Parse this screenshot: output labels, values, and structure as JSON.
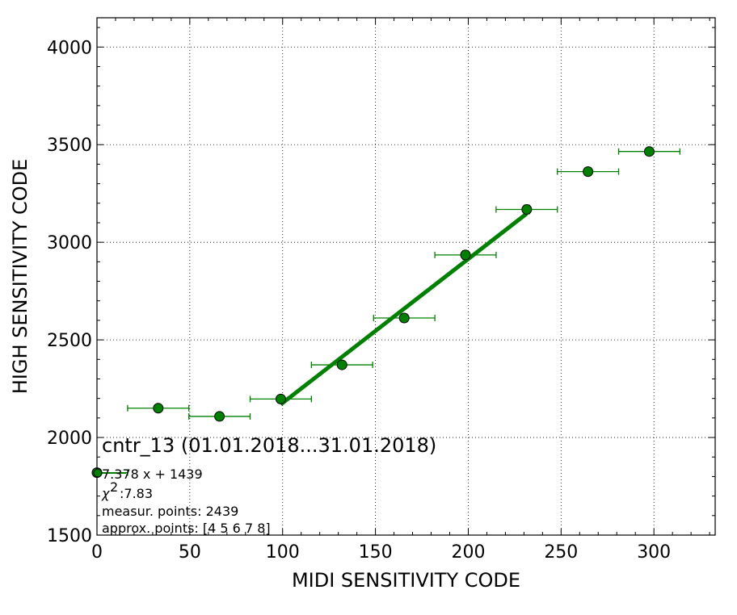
{
  "chart_data": {
    "type": "scatter",
    "title": "cntr_13 (01.01.2018...31.01.2018)",
    "xlabel": "MIDI SENSITIVITY CODE",
    "ylabel": "HIGH SENSITIVITY CODE",
    "xlim": [
      0,
      333
    ],
    "ylim": [
      1500,
      4150
    ],
    "xticks": [
      "0",
      "50",
      "100",
      "150",
      "200",
      "250",
      "300"
    ],
    "yticks": [
      "1500",
      "2000",
      "2500",
      "3000",
      "3500",
      "4000"
    ],
    "grid": true,
    "colors": {
      "points": "#008000",
      "fit_line": "#008000",
      "errorbars": "#008000"
    },
    "series": [
      {
        "x": [
          0,
          33,
          66,
          99,
          132,
          165.5,
          198.5,
          231.5,
          264.5,
          297.5
        ],
        "y": [
          1820,
          2150,
          2108,
          2197,
          2372,
          2612,
          2935,
          3168,
          3362,
          3465
        ],
        "xerr": [
          16.5,
          16.5,
          16.5,
          16.5,
          16.5,
          16.5,
          16.5,
          16.5,
          16.5,
          16.5
        ],
        "yerr": [
          8,
          10,
          10,
          12,
          15,
          20,
          22,
          22,
          20,
          12
        ]
      }
    ],
    "fit": {
      "slope": 7.378,
      "intercept": 1439,
      "x_range": [
        99,
        231.5
      ]
    },
    "annotations": {
      "equation": "7.378 x + 1439",
      "chi2": ":7.83",
      "measur_points": "measur. points: 2439",
      "approx_points": "approx. points: [4 5 6 7 8]"
    }
  }
}
